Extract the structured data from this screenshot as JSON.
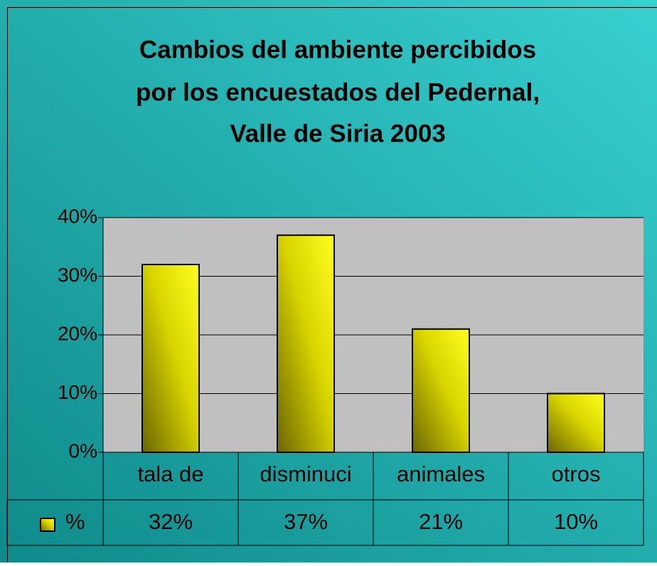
{
  "chart_data": {
    "type": "bar",
    "title": [
      "Cambios del ambiente percibidos",
      "por los encuestados del Pedernal,",
      "Valle de Siria 2003"
    ],
    "categories": [
      "tala de",
      "disminuci",
      "animales",
      "otros"
    ],
    "series": [
      {
        "name": "%",
        "color": "#ffff00",
        "values": [
          32,
          37,
          21,
          10
        ],
        "value_labels": [
          "32%",
          "37%",
          "21%",
          "10%"
        ]
      }
    ],
    "ylim": [
      0,
      40
    ],
    "yticks": [
      {
        "value": 0,
        "label": "0%"
      },
      {
        "value": 10,
        "label": "10%"
      },
      {
        "value": 20,
        "label": "20%"
      },
      {
        "value": 30,
        "label": "30%"
      },
      {
        "value": 40,
        "label": "40%"
      }
    ],
    "grid": true,
    "data_table": true
  }
}
